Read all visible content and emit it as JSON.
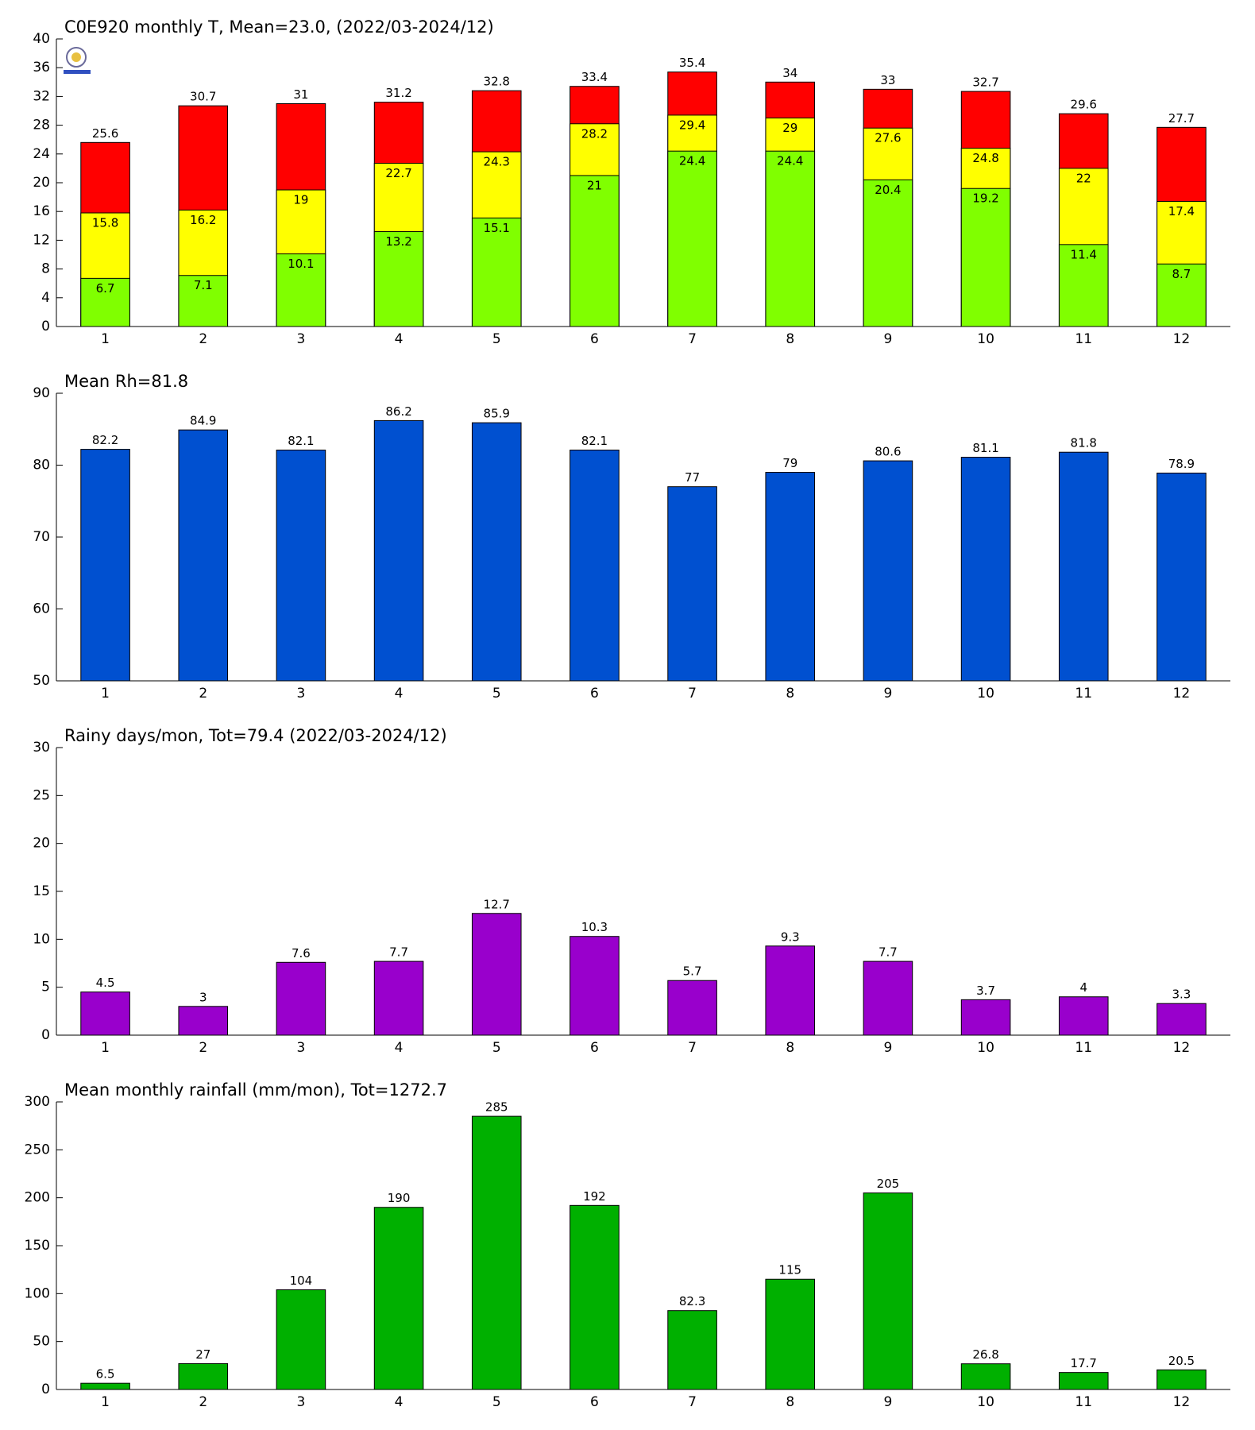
{
  "chart_data": [
    {
      "type": "bar",
      "title": "C0E920 monthly T, Mean=23.0, (2022/03-2024/12)",
      "categories": [
        "1",
        "2",
        "3",
        "4",
        "5",
        "6",
        "7",
        "8",
        "9",
        "10",
        "11",
        "12"
      ],
      "series": [
        {
          "color": "#ff0000",
          "values": [
            25.6,
            30.7,
            31,
            31.2,
            32.8,
            33.4,
            35.4,
            34,
            33,
            32.7,
            29.6,
            27.7
          ]
        },
        {
          "color": "#ffff00",
          "values": [
            15.8,
            16.2,
            19,
            22.7,
            24.3,
            28.2,
            29.4,
            29,
            27.6,
            24.8,
            22,
            17.4
          ]
        },
        {
          "color": "#80ff00",
          "values": [
            6.7,
            7.1,
            10.1,
            13.2,
            15.1,
            21,
            24.4,
            24.4,
            20.4,
            19.2,
            11.4,
            8.7
          ]
        }
      ],
      "ylim": [
        0,
        40
      ],
      "yticks": [
        0,
        4,
        8,
        12,
        16,
        20,
        24,
        28,
        32,
        36,
        40
      ]
    },
    {
      "type": "bar",
      "title": "Mean Rh=81.8",
      "categories": [
        "1",
        "2",
        "3",
        "4",
        "5",
        "6",
        "7",
        "8",
        "9",
        "10",
        "11",
        "12"
      ],
      "values": [
        82.2,
        84.9,
        82.1,
        86.2,
        85.9,
        82.1,
        77,
        79,
        80.6,
        81.1,
        81.8,
        78.9
      ],
      "color": "#0050d0",
      "ylim": [
        50,
        90
      ],
      "yticks": [
        50,
        60,
        70,
        80,
        90
      ]
    },
    {
      "type": "bar",
      "title": "Rainy days/mon, Tot=79.4 (2022/03-2024/12)",
      "categories": [
        "1",
        "2",
        "3",
        "4",
        "5",
        "6",
        "7",
        "8",
        "9",
        "10",
        "11",
        "12"
      ],
      "values": [
        4.5,
        3,
        7.6,
        7.7,
        12.7,
        10.3,
        5.7,
        9.3,
        7.7,
        3.7,
        4,
        3.3
      ],
      "color": "#9900cc",
      "ylim": [
        0,
        30
      ],
      "yticks": [
        0,
        5,
        10,
        15,
        20,
        25,
        30
      ]
    },
    {
      "type": "bar",
      "title": "Mean monthly rainfall (mm/mon), Tot=1272.7",
      "categories": [
        "1",
        "2",
        "3",
        "4",
        "5",
        "6",
        "7",
        "8",
        "9",
        "10",
        "11",
        "12"
      ],
      "values": [
        6.5,
        27,
        104,
        190,
        285,
        192,
        82.3,
        115,
        205,
        26.8,
        17.7,
        20.5
      ],
      "color": "#00b000",
      "ylim": [
        0,
        300
      ],
      "yticks": [
        0,
        50,
        100,
        150,
        200,
        250,
        300
      ]
    }
  ]
}
